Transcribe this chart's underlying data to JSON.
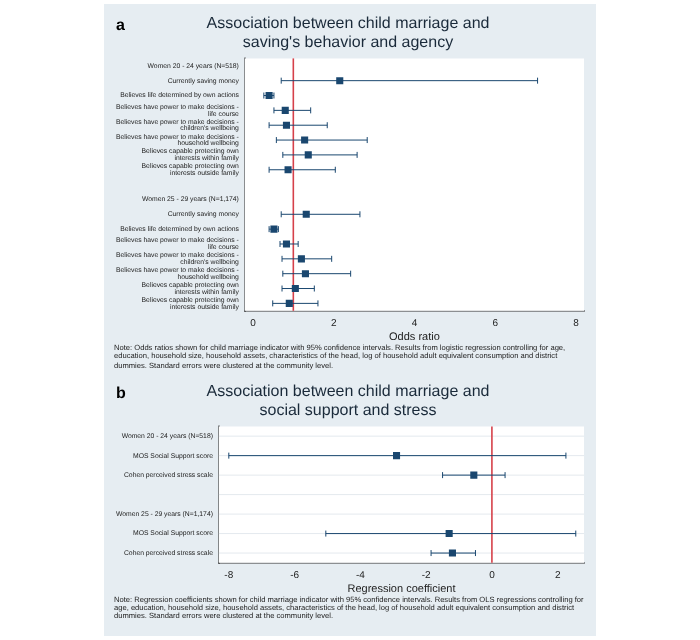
{
  "chart_data": [
    {
      "type": "scatter",
      "title": "Association between child marriage and saving's behavior and agency",
      "xlabel": "Odds ratio",
      "annotations": [
        "a",
        "Note: Odds ratios shown for child marriage indicator with 95% confidence intervals. Results from logistic regression controlling for age, education, household size, household assets, characteristics of the head, log of household adult equivalent consumption and district dummies. Standard errors were clustered at the community level."
      ],
      "categories": [
        "Women 20 - 24 years (N=518)",
        "Currently saving money",
        "Believes life determined by own actions",
        "Believes have power to make decisions - life course",
        "Believes have power to make decisions - children's wellbeing",
        "Believes have power to make decisions - household wellbeing",
        "Believes capable protecting own interests within family",
        "Believes capable protecting own interests outside family",
        null,
        "Women 25 - 29 years (N=1,174)",
        "Currently saving money",
        "Believes life determined by own actions",
        "Believes have power to make decisions - life course",
        "Believes have power to make decisions - children's wellbeing",
        "Believes have power to make decisions - household wellbeing",
        "Believes capable protecting own interests within family",
        "Believes capable protecting own interests outside family"
      ],
      "series": [
        {
          "color": "#1a476f",
          "values": [
            null,
            2.15,
            0.4,
            0.8,
            0.83,
            1.28,
            1.37,
            0.87,
            null,
            null,
            1.32,
            0.52,
            0.83,
            1.2,
            1.3,
            1.05,
            0.9
          ],
          "errors": [
            null,
            [
              0.7,
              7.05
            ],
            [
              0.27,
              0.52
            ],
            [
              0.52,
              1.43
            ],
            [
              0.4,
              1.84
            ],
            [
              0.58,
              2.83
            ],
            [
              0.74,
              2.58
            ],
            [
              0.4,
              2.04
            ],
            null,
            null,
            [
              0.7,
              2.65
            ],
            [
              0.4,
              0.63
            ],
            [
              0.67,
              1.12
            ],
            [
              0.72,
              1.95
            ],
            [
              0.74,
              2.42
            ],
            [
              0.72,
              1.52
            ],
            [
              0.49,
              1.61
            ]
          ]
        }
      ],
      "xlim": [
        -0.2,
        8.2
      ],
      "xticks": [
        0,
        2,
        4,
        6,
        8
      ],
      "marker": "square",
      "grid": false,
      "orientation": "horizontal",
      "ref_lines": [
        {
          "axis": "x",
          "value": 1,
          "color": "#d6404a"
        }
      ]
    },
    {
      "type": "scatter",
      "title": "Association between child marriage and social support and stress",
      "xlabel": "Regression coefficient",
      "annotations": [
        "b",
        "Note: Regression coefficients shown for child marriage indicator with 95% confidence intervals. Results from OLS regressions controlling for age, education, household size, household assets, characteristics of the head, log of household adult equivalent consumption and district dummies. Standard errors were clustered at the community level."
      ],
      "categories": [
        "Women 20 - 24 years (N=518)",
        "MOS Social Support score",
        "Cohen perceived stress scale",
        null,
        "Women 25 - 29 years (N=1,174)",
        "MOS Social Support score",
        "Cohen perceived stress scale"
      ],
      "series": [
        {
          "color": "#1a476f",
          "values": [
            null,
            -2.9,
            -0.55,
            null,
            null,
            -1.3,
            -1.2
          ],
          "errors": [
            null,
            [
              -8.0,
              2.25
            ],
            [
              -1.5,
              0.4
            ],
            null,
            null,
            [
              -5.05,
              2.55
            ],
            [
              -1.85,
              -0.5
            ]
          ]
        }
      ],
      "xlim": [
        -8.3,
        2.8
      ],
      "xticks": [
        -8,
        -6,
        -4,
        -2,
        0,
        2
      ],
      "marker": "square",
      "grid": "y",
      "orientation": "horizontal",
      "ref_lines": [
        {
          "axis": "x",
          "value": 0,
          "color": "#d6404a"
        }
      ]
    }
  ]
}
